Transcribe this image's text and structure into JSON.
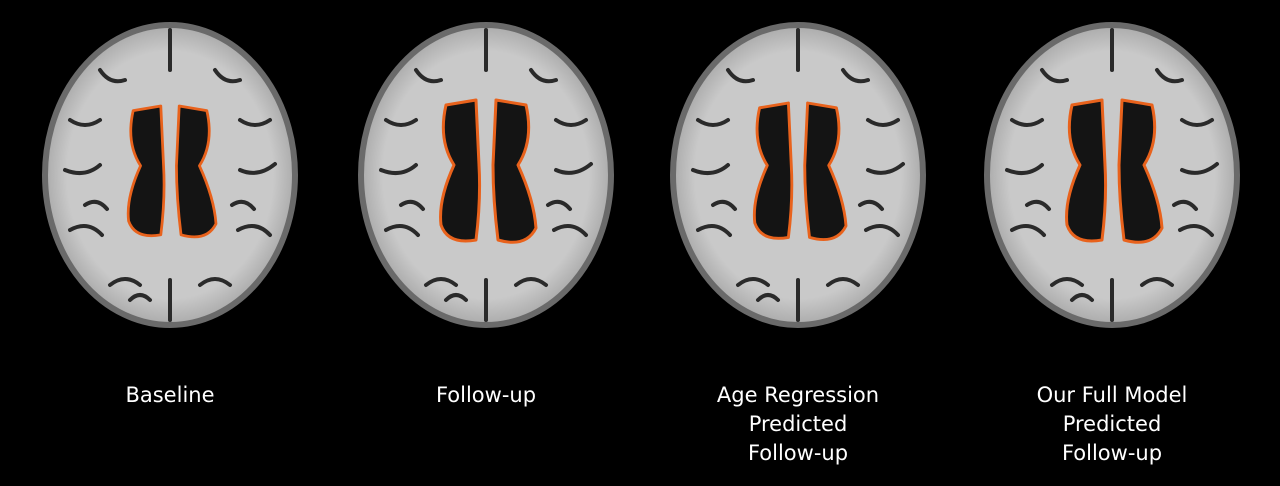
{
  "colors": {
    "background": "#000000",
    "tissue_light": "#c9c9c9",
    "tissue_mid": "#9a9a9a",
    "sulcus_dark": "#2a2a2a",
    "ventricle": "#141414",
    "segmentation_outline": "#e8621c",
    "caption_text": "#ffffff"
  },
  "panels": [
    {
      "key": "baseline",
      "caption_lines": [
        "Baseline"
      ],
      "ventricle_scale": 0.92
    },
    {
      "key": "follow-up",
      "caption_lines": [
        "Follow-up"
      ],
      "ventricle_scale": 1.0
    },
    {
      "key": "age-regression",
      "caption_lines": [
        "Age Regression",
        "Predicted",
        "Follow-up"
      ],
      "ventricle_scale": 0.96
    },
    {
      "key": "full-model",
      "caption_lines": [
        "Our Full Model",
        "Predicted",
        "Follow-up"
      ],
      "ventricle_scale": 1.0
    }
  ]
}
